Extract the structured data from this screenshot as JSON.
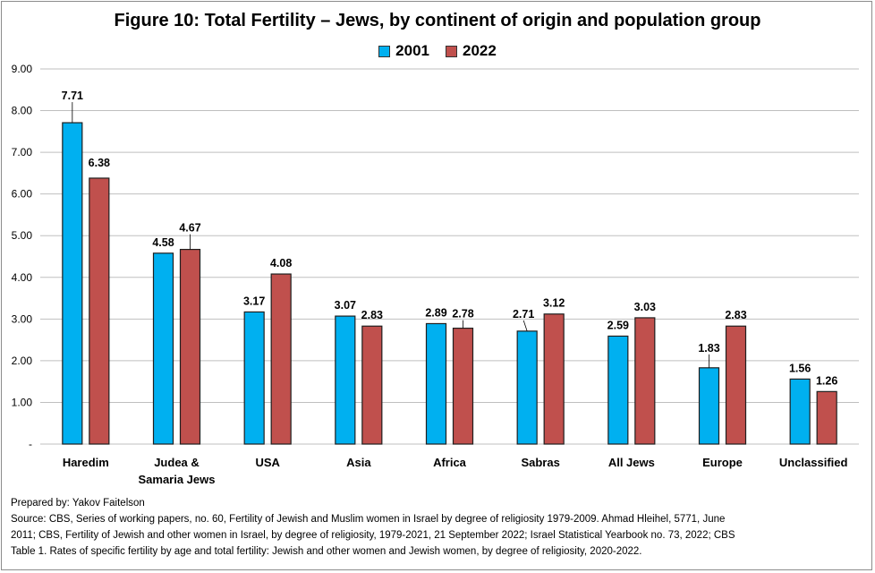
{
  "chart_data": {
    "type": "bar",
    "title": "Figure 10:  Total Fertility – Jews, by continent of origin and population group",
    "categories": [
      "Haredim",
      "Judea & Samaria Jews",
      "USA",
      "Asia",
      "Africa",
      "Sabras",
      "All Jews",
      "Europe",
      "Unclassified"
    ],
    "series": [
      {
        "name": "2001",
        "values": [
          7.71,
          4.58,
          3.17,
          3.07,
          2.89,
          2.71,
          2.59,
          1.83,
          1.56
        ],
        "labels": [
          "7.71",
          "4.58",
          "3.17",
          "3.07",
          "2.89",
          "2.71",
          "2.59",
          "1.83",
          "1.56"
        ],
        "color": "#00b0f0"
      },
      {
        "name": "2022",
        "values": [
          6.38,
          4.67,
          4.08,
          2.83,
          2.78,
          3.12,
          3.03,
          2.83,
          1.26
        ],
        "labels": [
          "6.38",
          "4.67",
          "4.08",
          "2.83",
          "2.78",
          "3.12",
          "3.03",
          "2.83",
          "1.26"
        ],
        "color": "#c0504d"
      }
    ],
    "ylim": [
      0,
      9
    ],
    "yticks": [
      "-",
      "1.00",
      "2.00",
      "3.00",
      "4.00",
      "5.00",
      "6.00",
      "7.00",
      "8.00",
      "9.00"
    ],
    "xlabel": "",
    "ylabel": "",
    "grid": true,
    "legend_position": "top-center"
  },
  "footer": {
    "line1": "Prepared by: Yakov Faitelson",
    "line2": "Source: CBS, Series of working papers, no. 60, Fertility of Jewish and Muslim women in Israel by degree of religiosity 1979-2009.  Ahmad Hleihel, 5771, June",
    "line3": "2011;   CBS, Fertility of Jewish and other women in Israel, by degree of religiosity, 1979-2021, 21 September 2022;  Israel Statistical Yearbook no. 73, 2022;  CBS",
    "line4": "Table 1. Rates of specific fertility by age and total fertility: Jewish and other women and Jewish women, by degree of religiosity, 2020-2022."
  }
}
